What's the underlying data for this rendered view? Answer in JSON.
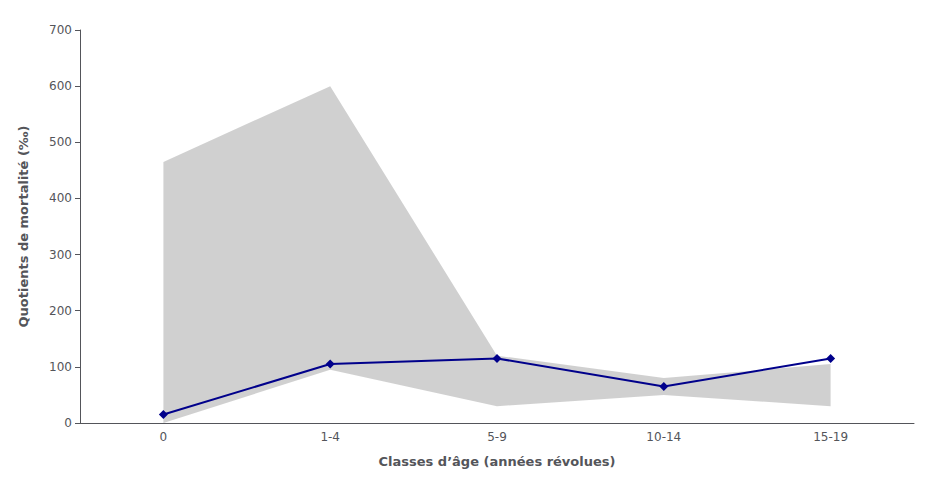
{
  "chart_data": {
    "type": "line",
    "categories": [
      "0",
      "1-4",
      "5-9",
      "10-14",
      "15-19"
    ],
    "series": [
      {
        "type": "band",
        "color": "#C0C0C0",
        "upper": [
          465,
          600,
          120,
          80,
          105
        ],
        "lower": [
          0,
          95,
          30,
          50,
          30
        ]
      },
      {
        "type": "line",
        "color": "#00008B",
        "marker": "diamond",
        "values": [
          15,
          105,
          115,
          65,
          115
        ]
      }
    ],
    "xlabel": "Classes d’âge (années révolues)",
    "ylabel": "Quotients de mortalité (‰)",
    "ylim": [
      0,
      700
    ],
    "yticks": [
      0,
      100,
      200,
      300,
      400,
      500,
      600,
      700
    ],
    "grid": false
  }
}
